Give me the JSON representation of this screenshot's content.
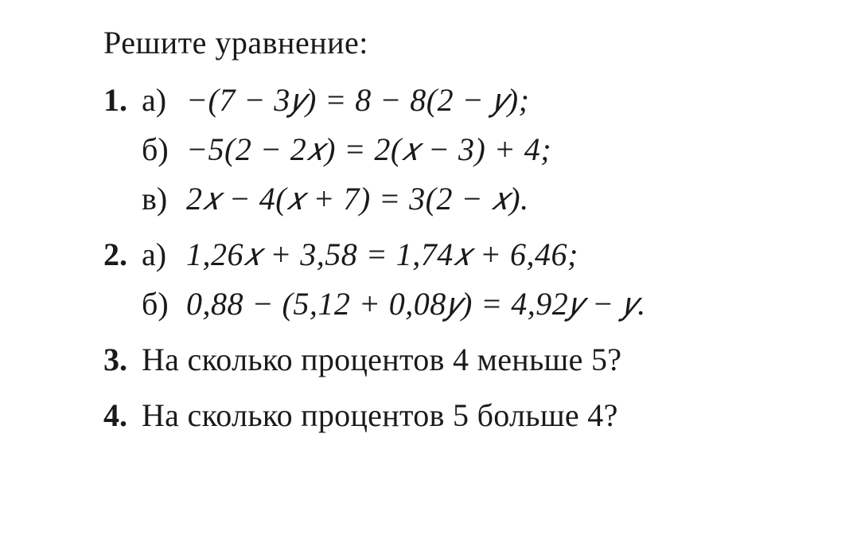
{
  "document": {
    "background_color": "#ffffff",
    "text_color": "#1a1a1a",
    "font_family": "Times New Roman, Century Schoolbook, serif",
    "title_fontsize": 40,
    "body_fontsize": 40,
    "line_height": 1.55
  },
  "title": "Решите уравнение:",
  "problems": {
    "p1": {
      "number": "1.",
      "a": {
        "label": "а)",
        "expr": "−(7 − 3𝑦) = 8 − 8(2 − 𝑦);"
      },
      "b": {
        "label": "б)",
        "expr": "−5(2 − 2𝑥) = 2(𝑥 − 3) + 4;"
      },
      "c": {
        "label": "в)",
        "expr": "2𝑥 − 4(𝑥 + 7) = 3(2 − 𝑥)."
      }
    },
    "p2": {
      "number": "2.",
      "a": {
        "label": "а)",
        "expr": "1,26𝑥 + 3,58 = 1,74𝑥 + 6,46;"
      },
      "b": {
        "label": "б)",
        "expr": "0,88 − (5,12 + 0,08𝑦) = 4,92𝑦 − 𝑦."
      }
    },
    "p3": {
      "number": "3.",
      "text": "На сколько процентов 4 меньше 5?"
    },
    "p4": {
      "number": "4.",
      "text": "На сколько процентов 5 больше 4?"
    }
  }
}
